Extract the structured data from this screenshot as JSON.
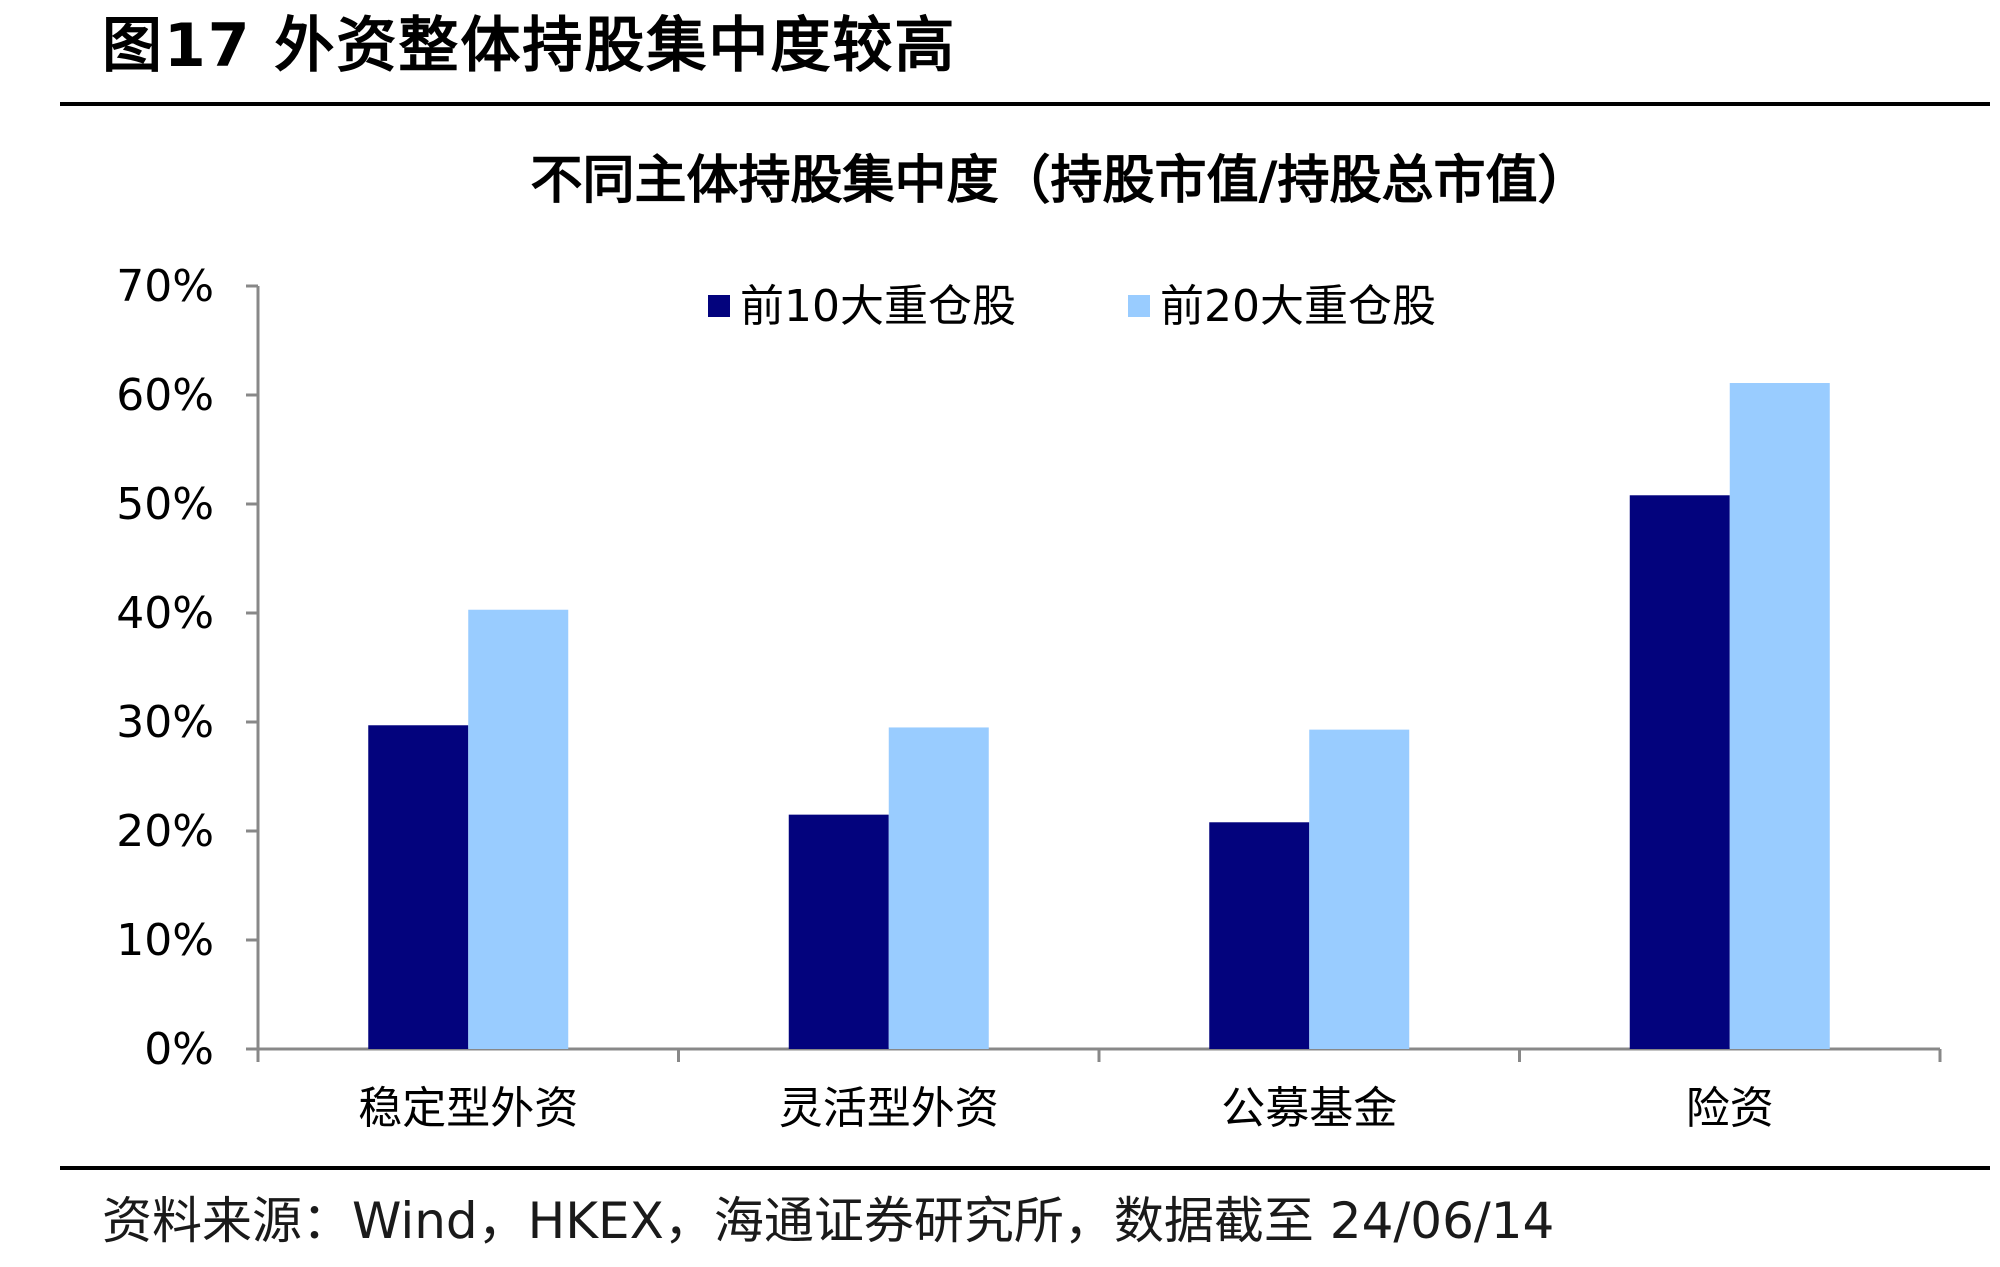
{
  "figure": {
    "label": "图17 外资整体持股集中度较高",
    "source": "资料来源：Wind，HKEX，海通证券研究所，数据截至 24/06/14"
  },
  "colors": {
    "series_1": "#03037D",
    "series_2": "#99CCFF",
    "axis": "#888888"
  },
  "chart_data": {
    "type": "bar",
    "title": "不同主体持股集中度（持股市值/持股总市值）",
    "xlabel": "",
    "ylabel": "",
    "categories": [
      "稳定型外资",
      "灵活型外资",
      "公募基金",
      "险资"
    ],
    "series": [
      {
        "name": "前10大重仓股",
        "values": [
          0.297,
          0.215,
          0.208,
          0.508
        ]
      },
      {
        "name": "前20大重仓股",
        "values": [
          0.403,
          0.295,
          0.293,
          0.611
        ]
      }
    ],
    "ylim": [
      0,
      0.7
    ],
    "yticks": [
      0,
      0.1,
      0.2,
      0.3,
      0.4,
      0.5,
      0.6,
      0.7
    ],
    "ytick_labels": [
      "0%",
      "10%",
      "20%",
      "30%",
      "40%",
      "50%",
      "60%",
      "70%"
    ],
    "grid": false,
    "legend_position": "top-center"
  }
}
